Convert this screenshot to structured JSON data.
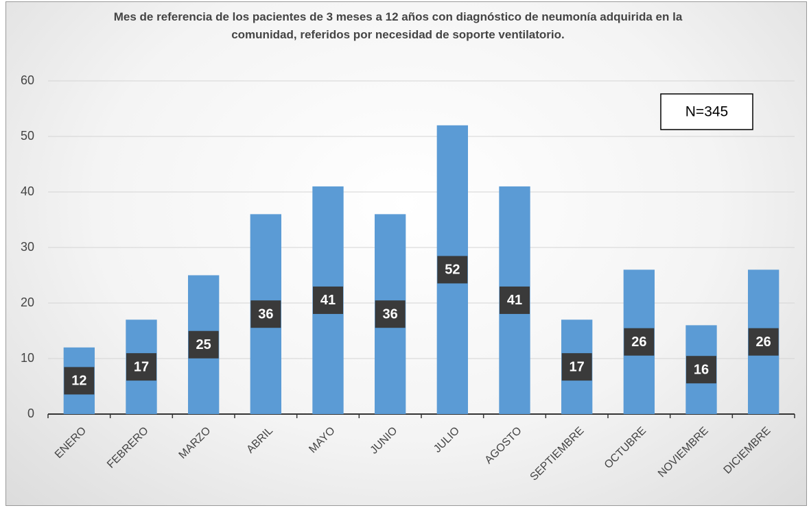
{
  "chart_data": {
    "type": "bar",
    "title": "Mes de referencia de los pacientes de 3 meses a 12 años con diagnóstico de neumonía adquirida en la comunidad, referidos por necesidad de soporte ventilatorio.",
    "annotation": "N=345",
    "categories": [
      "ENERO",
      "FEBRERO",
      "MARZO",
      "ABRIL",
      "MAYO",
      "JUNIO",
      "JULIO",
      "AGOSTO",
      "SEPTIEMBRE",
      "OCTUBRE",
      "NOVIEMBRE",
      "DICIEMBRE"
    ],
    "values": [
      12,
      17,
      25,
      36,
      41,
      36,
      52,
      41,
      17,
      26,
      16,
      26
    ],
    "color": "#5b9bd5",
    "ylim": [
      0,
      60
    ],
    "yticks": [
      0,
      10,
      20,
      30,
      40,
      50,
      60
    ],
    "grid": true
  }
}
